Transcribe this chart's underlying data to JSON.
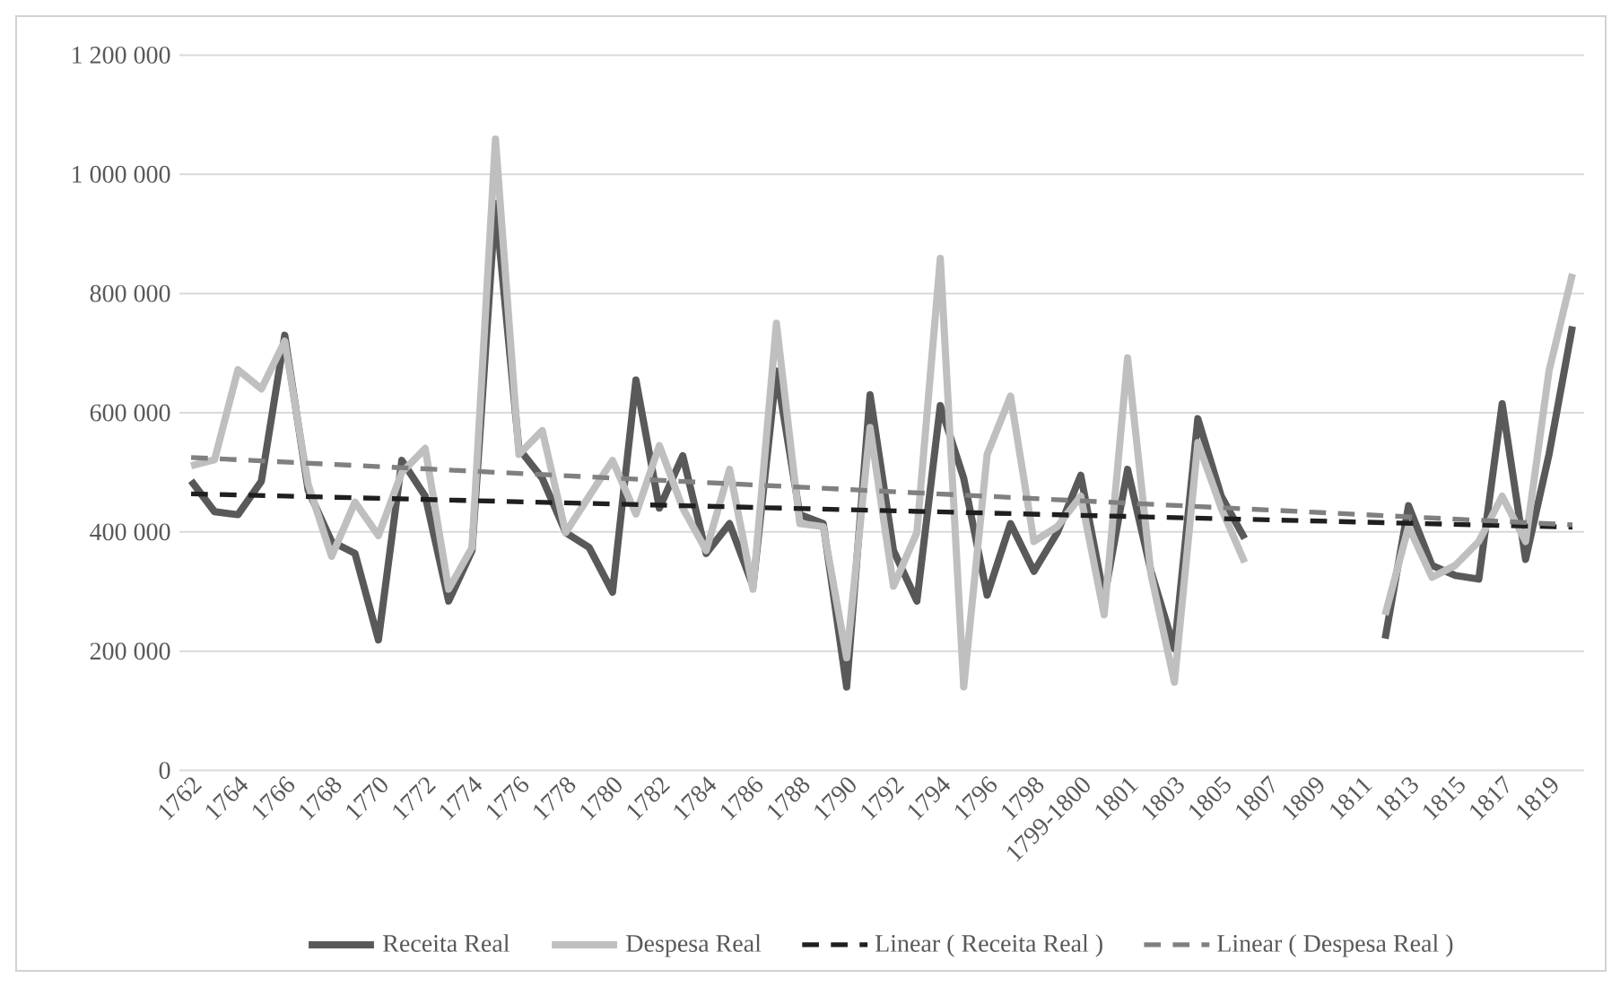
{
  "chart_data": {
    "type": "line",
    "categories": [
      "1762",
      null,
      "1764",
      null,
      "1766",
      null,
      "1768",
      null,
      "1770",
      null,
      "1772",
      null,
      "1774",
      null,
      "1776",
      null,
      "1778",
      null,
      "1780",
      null,
      "1782",
      null,
      "1784",
      null,
      "1786",
      null,
      "1788",
      null,
      "1790",
      null,
      "1792",
      null,
      "1794",
      null,
      "1796",
      null,
      "1798",
      null,
      "1799-1800",
      null,
      "1801",
      null,
      "1803",
      null,
      "1805",
      null,
      "1807",
      null,
      "1809",
      null,
      "1811",
      null,
      "1813",
      null,
      "1815",
      null,
      "1817",
      null,
      "1819",
      null
    ],
    "series": [
      {
        "name": "Receita Real",
        "color": "#595959",
        "line_style": "solid",
        "values": [
          486000,
          434000,
          429000,
          485000,
          730000,
          470000,
          384000,
          364000,
          219000,
          520000,
          460000,
          284000,
          369000,
          951000,
          540000,
          490000,
          399000,
          374000,
          299000,
          655000,
          440000,
          528000,
          364000,
          414000,
          309000,
          670000,
          429000,
          414000,
          140000,
          630000,
          369000,
          284000,
          612000,
          490000,
          294000,
          414000,
          334000,
          399000,
          495000,
          289000,
          505000,
          334000,
          204000,
          590000,
          460000,
          389000,
          null,
          null,
          null,
          null,
          null,
          221000,
          444000,
          344000,
          327000,
          321000,
          615000,
          354000,
          530000,
          745000
        ]
      },
      {
        "name": "Despesa Real",
        "color": "#bfbfbf",
        "line_style": "solid",
        "values": [
          511000,
          521000,
          672000,
          640000,
          720000,
          480000,
          359000,
          450000,
          394000,
          500000,
          540000,
          304000,
          374000,
          1059000,
          530000,
          570000,
          399000,
          460000,
          520000,
          430000,
          545000,
          440000,
          369000,
          505000,
          304000,
          750000,
          414000,
          409000,
          189000,
          575000,
          309000,
          399000,
          859000,
          140000,
          530000,
          628000,
          384000,
          409000,
          460000,
          261000,
          692000,
          329000,
          148000,
          550000,
          440000,
          349000,
          null,
          null,
          null,
          null,
          null,
          261000,
          409000,
          324000,
          344000,
          384000,
          460000,
          384000,
          670000,
          833000
        ]
      },
      {
        "name": "Linear ( Receita Real )",
        "color": "#1f1f1f",
        "line_style": "dashed",
        "values": [
          464000,
          null,
          null,
          null,
          null,
          null,
          null,
          null,
          null,
          null,
          null,
          null,
          null,
          null,
          null,
          null,
          null,
          null,
          null,
          null,
          null,
          null,
          null,
          null,
          null,
          null,
          null,
          null,
          null,
          null,
          null,
          null,
          null,
          null,
          null,
          null,
          null,
          null,
          null,
          null,
          null,
          null,
          null,
          null,
          null,
          null,
          null,
          null,
          null,
          null,
          null,
          null,
          null,
          null,
          null,
          null,
          null,
          null,
          null,
          408000
        ]
      },
      {
        "name": "Linear ( Despesa Real )",
        "color": "#808080",
        "line_style": "dashed",
        "values": [
          525000,
          null,
          null,
          null,
          null,
          null,
          null,
          null,
          null,
          null,
          null,
          null,
          null,
          null,
          null,
          null,
          null,
          null,
          null,
          null,
          null,
          null,
          null,
          null,
          null,
          null,
          null,
          null,
          null,
          null,
          null,
          null,
          null,
          null,
          null,
          null,
          null,
          null,
          null,
          null,
          null,
          null,
          null,
          null,
          null,
          null,
          null,
          null,
          null,
          null,
          null,
          null,
          null,
          null,
          null,
          null,
          null,
          null,
          null,
          412000
        ]
      }
    ],
    "ylim": [
      0,
      1200000
    ],
    "yticks": [
      0,
      {
        "value": 200000,
        "label": "200 000"
      },
      {
        "value": 400000,
        "label": "400 000"
      },
      {
        "value": 600000,
        "label": "600 000"
      },
      {
        "value": 800000,
        "label": "800 000"
      },
      {
        "value": 1000000,
        "label": "1 000 000"
      },
      {
        "value": 1200000,
        "label": "1 200 000"
      }
    ],
    "grid": "y",
    "legend": "bottom",
    "marker": "none"
  }
}
